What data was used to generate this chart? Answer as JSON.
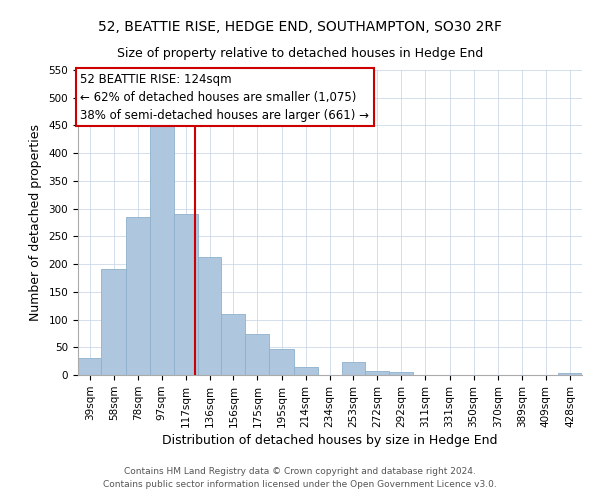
{
  "title": "52, BEATTIE RISE, HEDGE END, SOUTHAMPTON, SO30 2RF",
  "subtitle": "Size of property relative to detached houses in Hedge End",
  "xlabel": "Distribution of detached houses by size in Hedge End",
  "ylabel": "Number of detached properties",
  "bar_values": [
    30,
    192,
    285,
    458,
    290,
    212,
    110,
    74,
    47,
    14,
    0,
    23,
    8,
    5,
    0,
    0,
    0,
    0,
    0,
    0,
    4
  ],
  "bin_labels": [
    "39sqm",
    "58sqm",
    "78sqm",
    "97sqm",
    "117sqm",
    "136sqm",
    "156sqm",
    "175sqm",
    "195sqm",
    "214sqm",
    "234sqm",
    "253sqm",
    "272sqm",
    "292sqm",
    "311sqm",
    "331sqm",
    "350sqm",
    "370sqm",
    "389sqm",
    "409sqm",
    "428sqm"
  ],
  "bin_edges": [
    29.5,
    48.5,
    68.5,
    87.5,
    107,
    126.5,
    145.5,
    165,
    184.5,
    204,
    223.5,
    243,
    262,
    281.5,
    301,
    320.5,
    340,
    359.5,
    379,
    398.5,
    418,
    437.5
  ],
  "bar_color": "#aec6de",
  "bar_edge_color": "#8eb0cc",
  "vline_x": 124,
  "vline_color": "#cc0000",
  "ylim": [
    0,
    550
  ],
  "yticks": [
    0,
    50,
    100,
    150,
    200,
    250,
    300,
    350,
    400,
    450,
    500,
    550
  ],
  "annotation_title": "52 BEATTIE RISE: 124sqm",
  "annotation_line1": "← 62% of detached houses are smaller (1,075)",
  "annotation_line2": "38% of semi-detached houses are larger (661) →",
  "footer1": "Contains HM Land Registry data © Crown copyright and database right 2024.",
  "footer2": "Contains public sector information licensed under the Open Government Licence v3.0.",
  "title_fontsize": 10,
  "subtitle_fontsize": 9,
  "axis_label_fontsize": 9,
  "tick_fontsize": 7.5,
  "annotation_fontsize": 8.5,
  "footer_fontsize": 6.5
}
